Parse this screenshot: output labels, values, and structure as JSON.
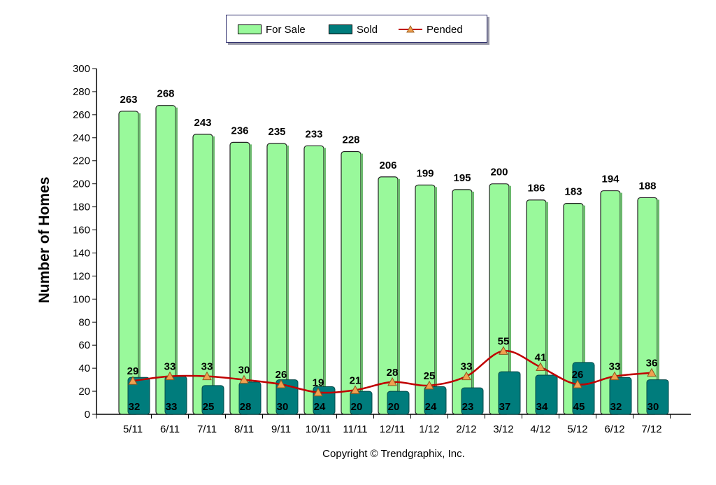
{
  "legend": {
    "for_sale": "For Sale",
    "sold": "Sold",
    "pended": "Pended"
  },
  "copyright": "Copyright © Trendgraphix, Inc.",
  "colors": {
    "for_sale": "#99f99b",
    "sold": "#007c7c",
    "pended": "#c00000",
    "pended_marker": "#f0a050"
  },
  "chart_data": {
    "type": "bar",
    "title": "",
    "xlabel": "",
    "ylabel": "Number of Homes",
    "ylim": [
      0,
      300
    ],
    "yticks": [
      0,
      20,
      40,
      60,
      80,
      100,
      120,
      140,
      160,
      180,
      200,
      220,
      240,
      260,
      280,
      300
    ],
    "categories": [
      "5/11",
      "6/11",
      "7/11",
      "8/11",
      "9/11",
      "10/11",
      "11/11",
      "12/11",
      "1/12",
      "2/12",
      "3/12",
      "4/12",
      "5/12",
      "6/12",
      "7/12"
    ],
    "legend_position": "top-center",
    "grid": false,
    "series": [
      {
        "name": "For Sale",
        "type": "bar",
        "values": [
          263,
          268,
          243,
          236,
          235,
          233,
          228,
          206,
          199,
          195,
          200,
          186,
          183,
          194,
          188
        ]
      },
      {
        "name": "Sold",
        "type": "bar",
        "values": [
          32,
          33,
          25,
          28,
          30,
          24,
          20,
          20,
          24,
          23,
          37,
          34,
          45,
          32,
          30
        ]
      },
      {
        "name": "Pended",
        "type": "line",
        "values": [
          29,
          33,
          33,
          30,
          26,
          19,
          21,
          28,
          25,
          33,
          55,
          41,
          26,
          33,
          36
        ]
      }
    ]
  }
}
